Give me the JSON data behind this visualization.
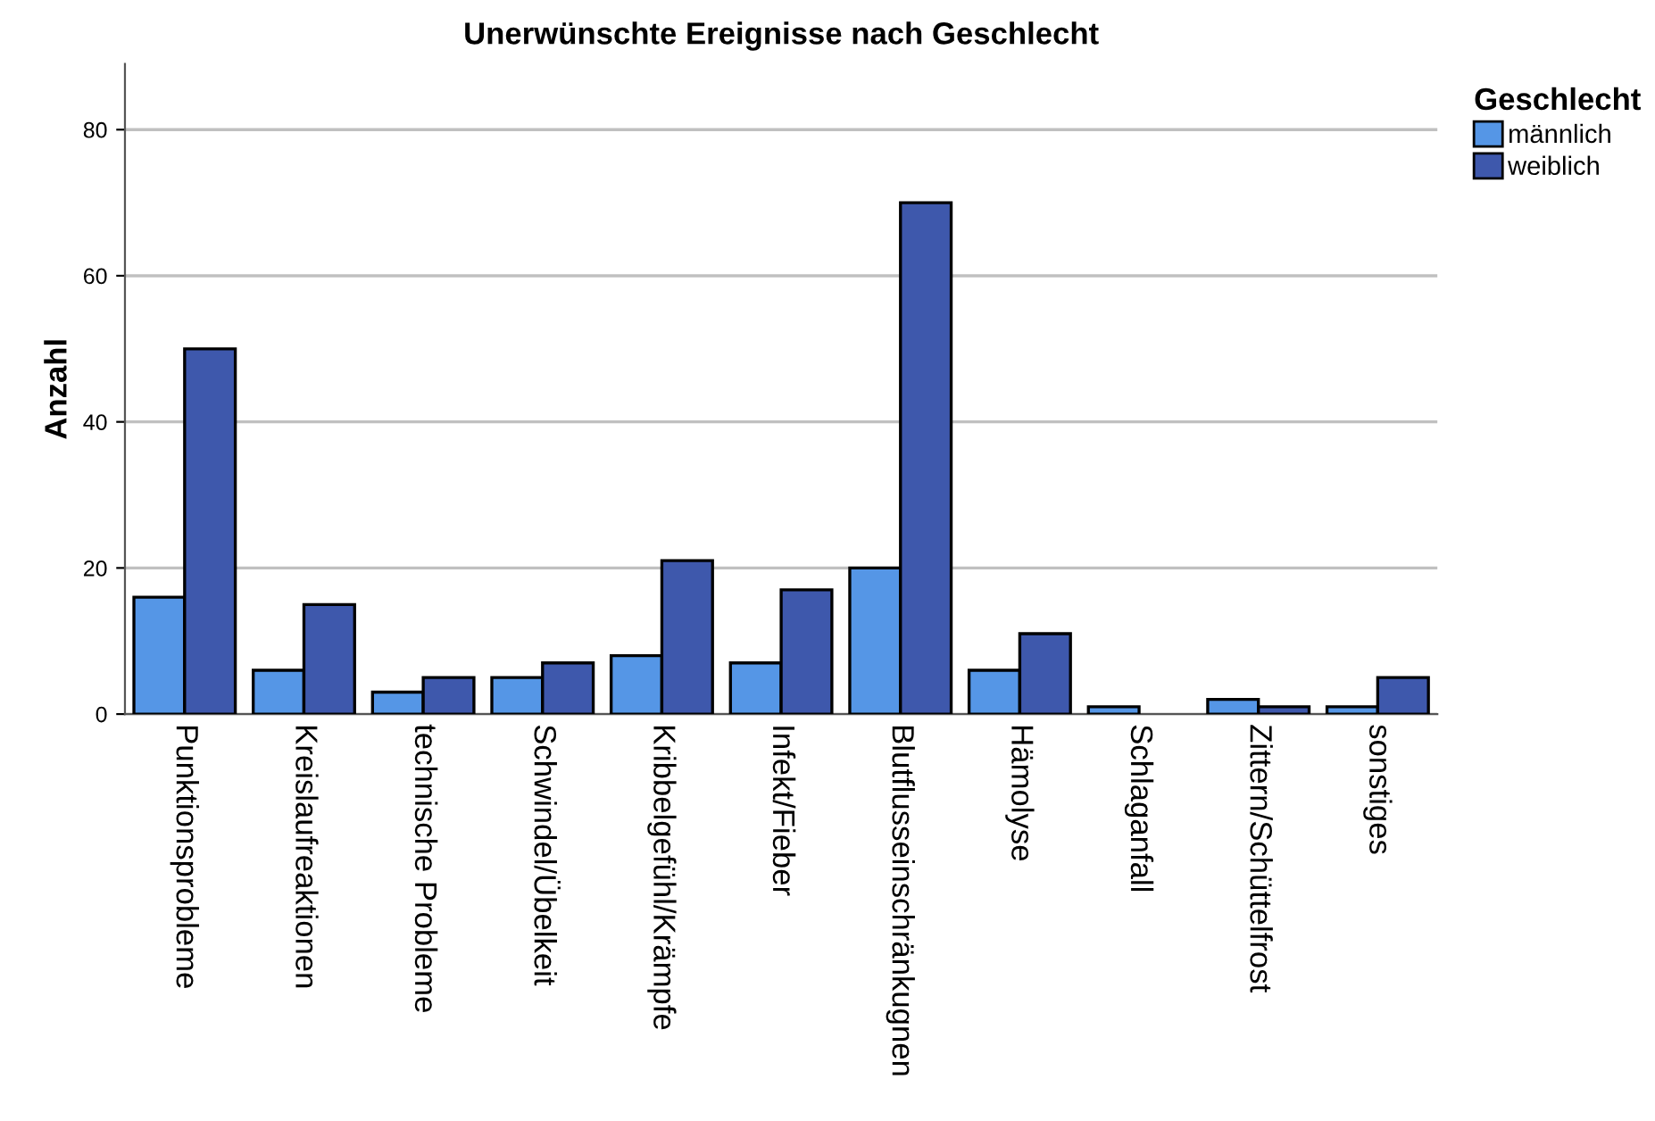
{
  "chart_data": {
    "type": "bar",
    "title": "Unerwünschte Ereignisse nach Geschlecht",
    "ylabel": "Anzahl",
    "legend_title": "Geschlecht",
    "categories": [
      "Punktionsprobleme",
      "Kreislaufreaktionen",
      "technische Probleme",
      "Schwindel/Übelkeit",
      "Kribbelgefühl/Krämpfe",
      "Infekt/Fieber",
      "Blutflusseinschränkugnen",
      "Hämolyse",
      "Schlaganfall",
      "Zittern/Schüttelfrost",
      "sonstiges"
    ],
    "series": [
      {
        "name": "männlich",
        "color": "#5596e6",
        "values": [
          16,
          6,
          3,
          5,
          8,
          7,
          20,
          6,
          1,
          2,
          1
        ]
      },
      {
        "name": "weiblich",
        "color": "#3e58ac",
        "values": [
          50,
          15,
          5,
          7,
          21,
          17,
          70,
          11,
          null,
          1,
          5
        ]
      }
    ],
    "ylim": [
      0,
      89
    ],
    "yticks": [
      0,
      20,
      40,
      60,
      80
    ],
    "grid": "y",
    "legend": "top right"
  }
}
